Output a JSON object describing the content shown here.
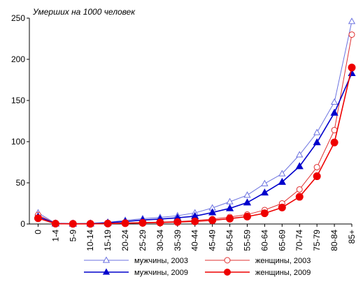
{
  "chart_data": {
    "type": "line",
    "ylabel": "Умерших на 1000 человек",
    "ylim": [
      0,
      250
    ],
    "yticks": [
      0,
      50,
      100,
      150,
      200,
      250
    ],
    "grid": false,
    "legend_position": "bottom",
    "categories": [
      "0",
      "1-4",
      "5-9",
      "10-14",
      "15-19",
      "20-24",
      "25-29",
      "30-34",
      "35-39",
      "40-44",
      "45-49",
      "50-54",
      "55-59",
      "60-64",
      "65-69",
      "70-74",
      "75-79",
      "80-84",
      "85+"
    ],
    "series": [
      {
        "name": "мужчины, 2003",
        "color": "#6b72e0",
        "marker": "triangle-open",
        "line": "thin",
        "values": [
          13.5,
          0.8,
          0.5,
          0.6,
          2.0,
          4.5,
          6.5,
          8.0,
          10.0,
          13.5,
          19.5,
          27.0,
          35.0,
          49.0,
          61.0,
          84.0,
          111.0,
          148.0,
          246.0
        ]
      },
      {
        "name": "женщины, 2003",
        "color": "#e03030",
        "marker": "circle-open",
        "line": "thin",
        "values": [
          11.0,
          0.7,
          0.3,
          0.3,
          0.6,
          1.2,
          1.8,
          2.3,
          3.0,
          4.2,
          6.0,
          8.5,
          11.5,
          17.0,
          25.0,
          42.0,
          69.0,
          114.0,
          230.0
        ]
      },
      {
        "name": "мужчины, 2009",
        "color": "#0000cc",
        "marker": "triangle-filled",
        "line": "thick",
        "values": [
          9.0,
          0.5,
          0.3,
          0.4,
          1.5,
          3.0,
          4.8,
          6.0,
          7.5,
          9.5,
          14.0,
          19.0,
          26.0,
          38.0,
          51.0,
          70.0,
          99.0,
          135.0,
          183.0
        ]
      },
      {
        "name": "женщины, 2009",
        "color": "#ee0000",
        "marker": "circle-filled",
        "line": "thick",
        "values": [
          7.0,
          0.4,
          0.2,
          0.2,
          0.5,
          1.0,
          1.4,
          1.8,
          2.4,
          3.2,
          4.5,
          6.5,
          9.0,
          13.0,
          20.0,
          33.0,
          58.0,
          99.0,
          190.0
        ]
      }
    ]
  }
}
